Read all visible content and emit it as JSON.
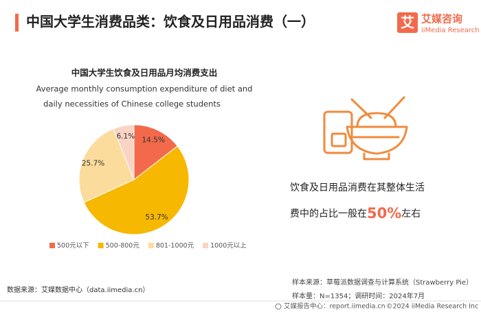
{
  "header": {
    "title": "中国大学生消费品类：饮食及日用品消费（一）",
    "logo_mark": "艾",
    "logo_name": "艾媒咨询",
    "logo_sub": "iiMedia Research"
  },
  "chart_data": {
    "type": "pie",
    "title": "中国大学生饮食及日用品月均消费支出",
    "subtitle": [
      "Average monthly consumption expenditure of diet and",
      "daily necessities of Chinese college students"
    ],
    "categories": [
      "500元以下",
      "500-800元",
      "801-1000元",
      "1000元以上"
    ],
    "values": [
      14.5,
      53.7,
      25.7,
      6.1
    ],
    "value_labels": [
      "14.5%",
      "53.7%",
      "25.7%",
      "6.1%"
    ],
    "colors": [
      "#f26a4b",
      "#f6b800",
      "#fbdc9c",
      "#f9d3c3"
    ],
    "legend": "bottom"
  },
  "highlight": {
    "line1": "饮食及日用品消费在其整体生活",
    "line2_before": "费中的占比一般在",
    "percent": "50%",
    "line2_after": "左右"
  },
  "data_source": "数据来源：艾媒数据中心（data.iimedia.cn）",
  "sample_source": "样本来源：草莓派数据调查与计算系统（Strawberry Pie）",
  "sample_info": "样本量：N=1354；调研时间：2024年7月",
  "footer": {
    "site": "艾媒报告中心：report.iimedia.cn",
    "copyright": "©2024  iiMedia Research  Inc"
  }
}
